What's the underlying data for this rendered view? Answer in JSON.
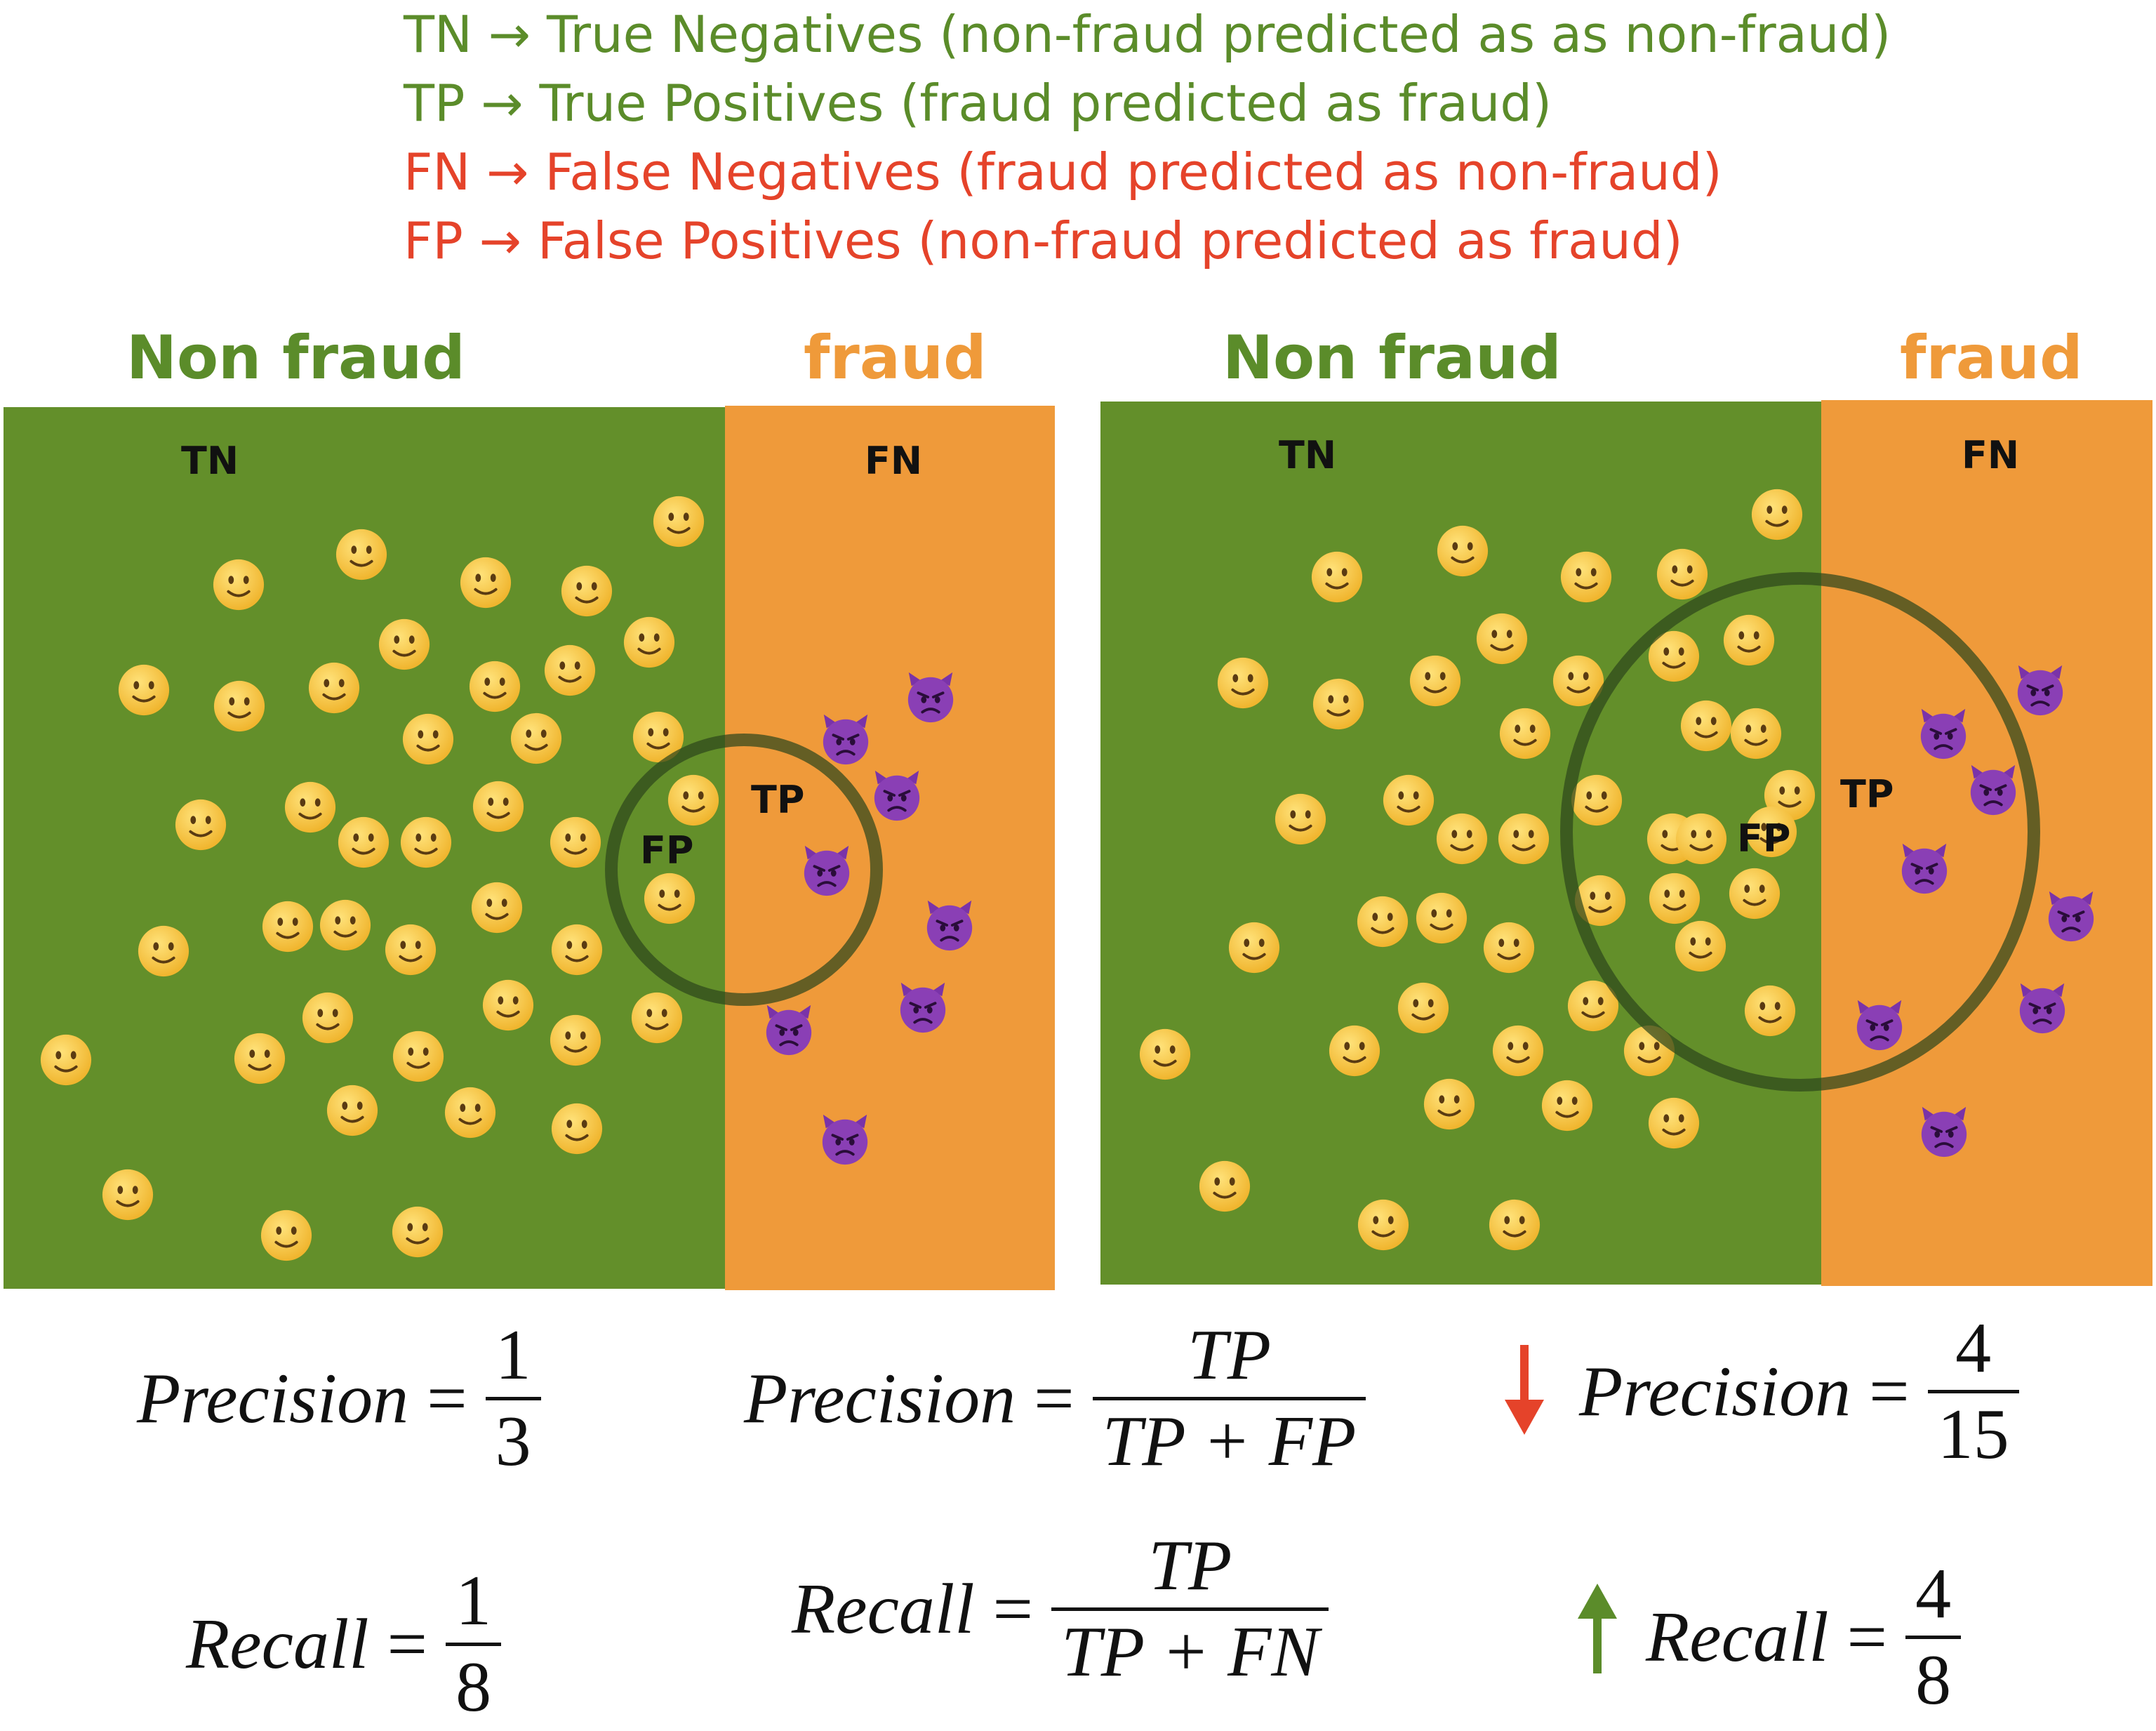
{
  "legend": [
    {
      "abbr": "TN",
      "text": "True Negatives (non-fraud predicted as as non-fraud)",
      "color": "#5b8c2a"
    },
    {
      "abbr": "TP",
      "text": "True Positives (fraud predicted as fraud)",
      "color": "#5b8c2a"
    },
    {
      "abbr": "FN",
      "text": "False Negatives (fraud predicted as non-fraud)",
      "color": "#e5432a"
    },
    {
      "abbr": "FP",
      "text": "False Positives (non-fraud predicted as fraud)",
      "color": "#e5432a"
    }
  ],
  "left_panel": {
    "nonfraud_heading": "Non fraud",
    "fraud_heading": "fraud",
    "tn_label": "TN",
    "fn_label": "FN",
    "tp_label": "TP",
    "fp_label": "FP"
  },
  "right_panel": {
    "nonfraud_heading": "Non fraud",
    "fraud_heading": "fraud",
    "tn_label": "TN",
    "fn_label": "FN",
    "tp_label": "TP",
    "fp_label": "FP"
  },
  "counts": {
    "left": {
      "predicted_fraud": 3,
      "true_positives": 1,
      "actual_fraud": 8
    },
    "right": {
      "predicted_fraud": 15,
      "true_positives": 4,
      "actual_fraud": 8
    }
  },
  "formulas": {
    "left_precision": {
      "label": "Precision",
      "eq": "=",
      "num": "1",
      "den": "3"
    },
    "left_recall": {
      "label": "Recall",
      "eq": "=",
      "num": "1",
      "den": "8"
    },
    "general_precision": {
      "label": "Precision",
      "eq": "=",
      "num": "TP",
      "den": "TP + FP"
    },
    "general_recall": {
      "label": "Recall",
      "eq": "=",
      "num": "TP",
      "den": "TP + FN"
    },
    "right_precision": {
      "label": "Precision",
      "eq": "=",
      "num": "4",
      "den": "15",
      "trend": "down"
    },
    "right_recall": {
      "label": "Recall",
      "eq": "=",
      "num": "4",
      "den": "8",
      "trend": "up"
    }
  },
  "icons": {
    "smiley": "slightly-smiling-face-icon",
    "devil": "angry-devil-icon",
    "down_arrow": "red-down-arrow-icon",
    "up_arrow": "green-up-arrow-icon"
  },
  "colors": {
    "nonfraud": "#638f2a",
    "fraud": "#ef9a3a",
    "good_text": "#5b8c2a",
    "bad_text": "#e5432a",
    "smiley": "#f6c143",
    "devil": "#8a3fb5"
  }
}
